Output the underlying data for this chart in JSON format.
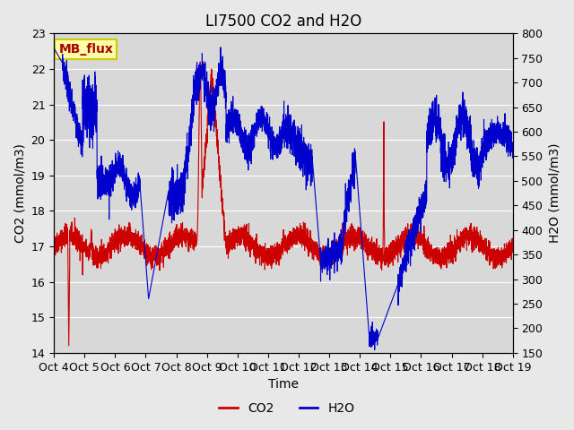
{
  "title": "LI7500 CO2 and H2O",
  "xlabel": "Time",
  "ylabel_left": "CO2 (mmol/m3)",
  "ylabel_right": "H2O (mmol/m3)",
  "co2_ylim": [
    14.0,
    23.0
  ],
  "h2o_ylim": [
    150,
    800
  ],
  "co2_yticks": [
    14.0,
    15.0,
    16.0,
    17.0,
    18.0,
    19.0,
    20.0,
    21.0,
    22.0,
    23.0
  ],
  "h2o_yticks": [
    150,
    200,
    250,
    300,
    350,
    400,
    450,
    500,
    550,
    600,
    650,
    700,
    750,
    800
  ],
  "xtick_labels": [
    "Oct 4",
    "Oct 5",
    "Oct 6",
    "Oct 7",
    "Oct 8",
    "Oct 9",
    "Oct 10",
    "Oct 11",
    "Oct 12",
    "Oct 13",
    "Oct 14",
    "Oct 15",
    "Oct 16",
    "Oct 17",
    "Oct 18",
    "Oct 19"
  ],
  "co2_color": "#cc0000",
  "h2o_color": "#0000cc",
  "background_color": "#e8e8e8",
  "plot_bg_color": "#d8d8d8",
  "annotation_text": "MB_flux",
  "annotation_bg": "#ffffaa",
  "annotation_border": "#cccc00",
  "title_fontsize": 12,
  "label_fontsize": 10,
  "tick_fontsize": 9
}
